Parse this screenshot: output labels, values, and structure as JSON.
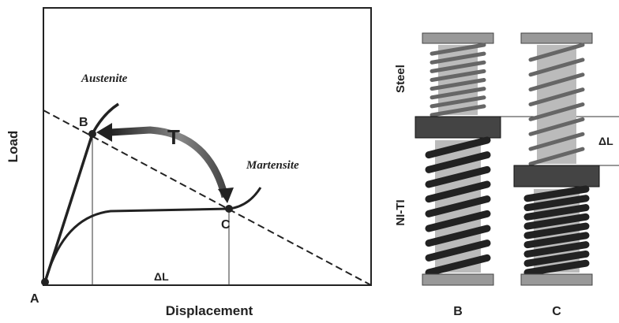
{
  "plot": {
    "y_label": "Load",
    "x_label": "Displacement",
    "austenite": "Austenite",
    "martensite": "Martensite",
    "arrow_label": "T",
    "point_a": "A",
    "point_b": "B",
    "point_c": "C",
    "delta": "ΔL"
  },
  "springs": {
    "top_label": "Steel",
    "bottom_label": "NI-TI",
    "columns": [
      "B",
      "C"
    ],
    "delta": "ΔL"
  }
}
